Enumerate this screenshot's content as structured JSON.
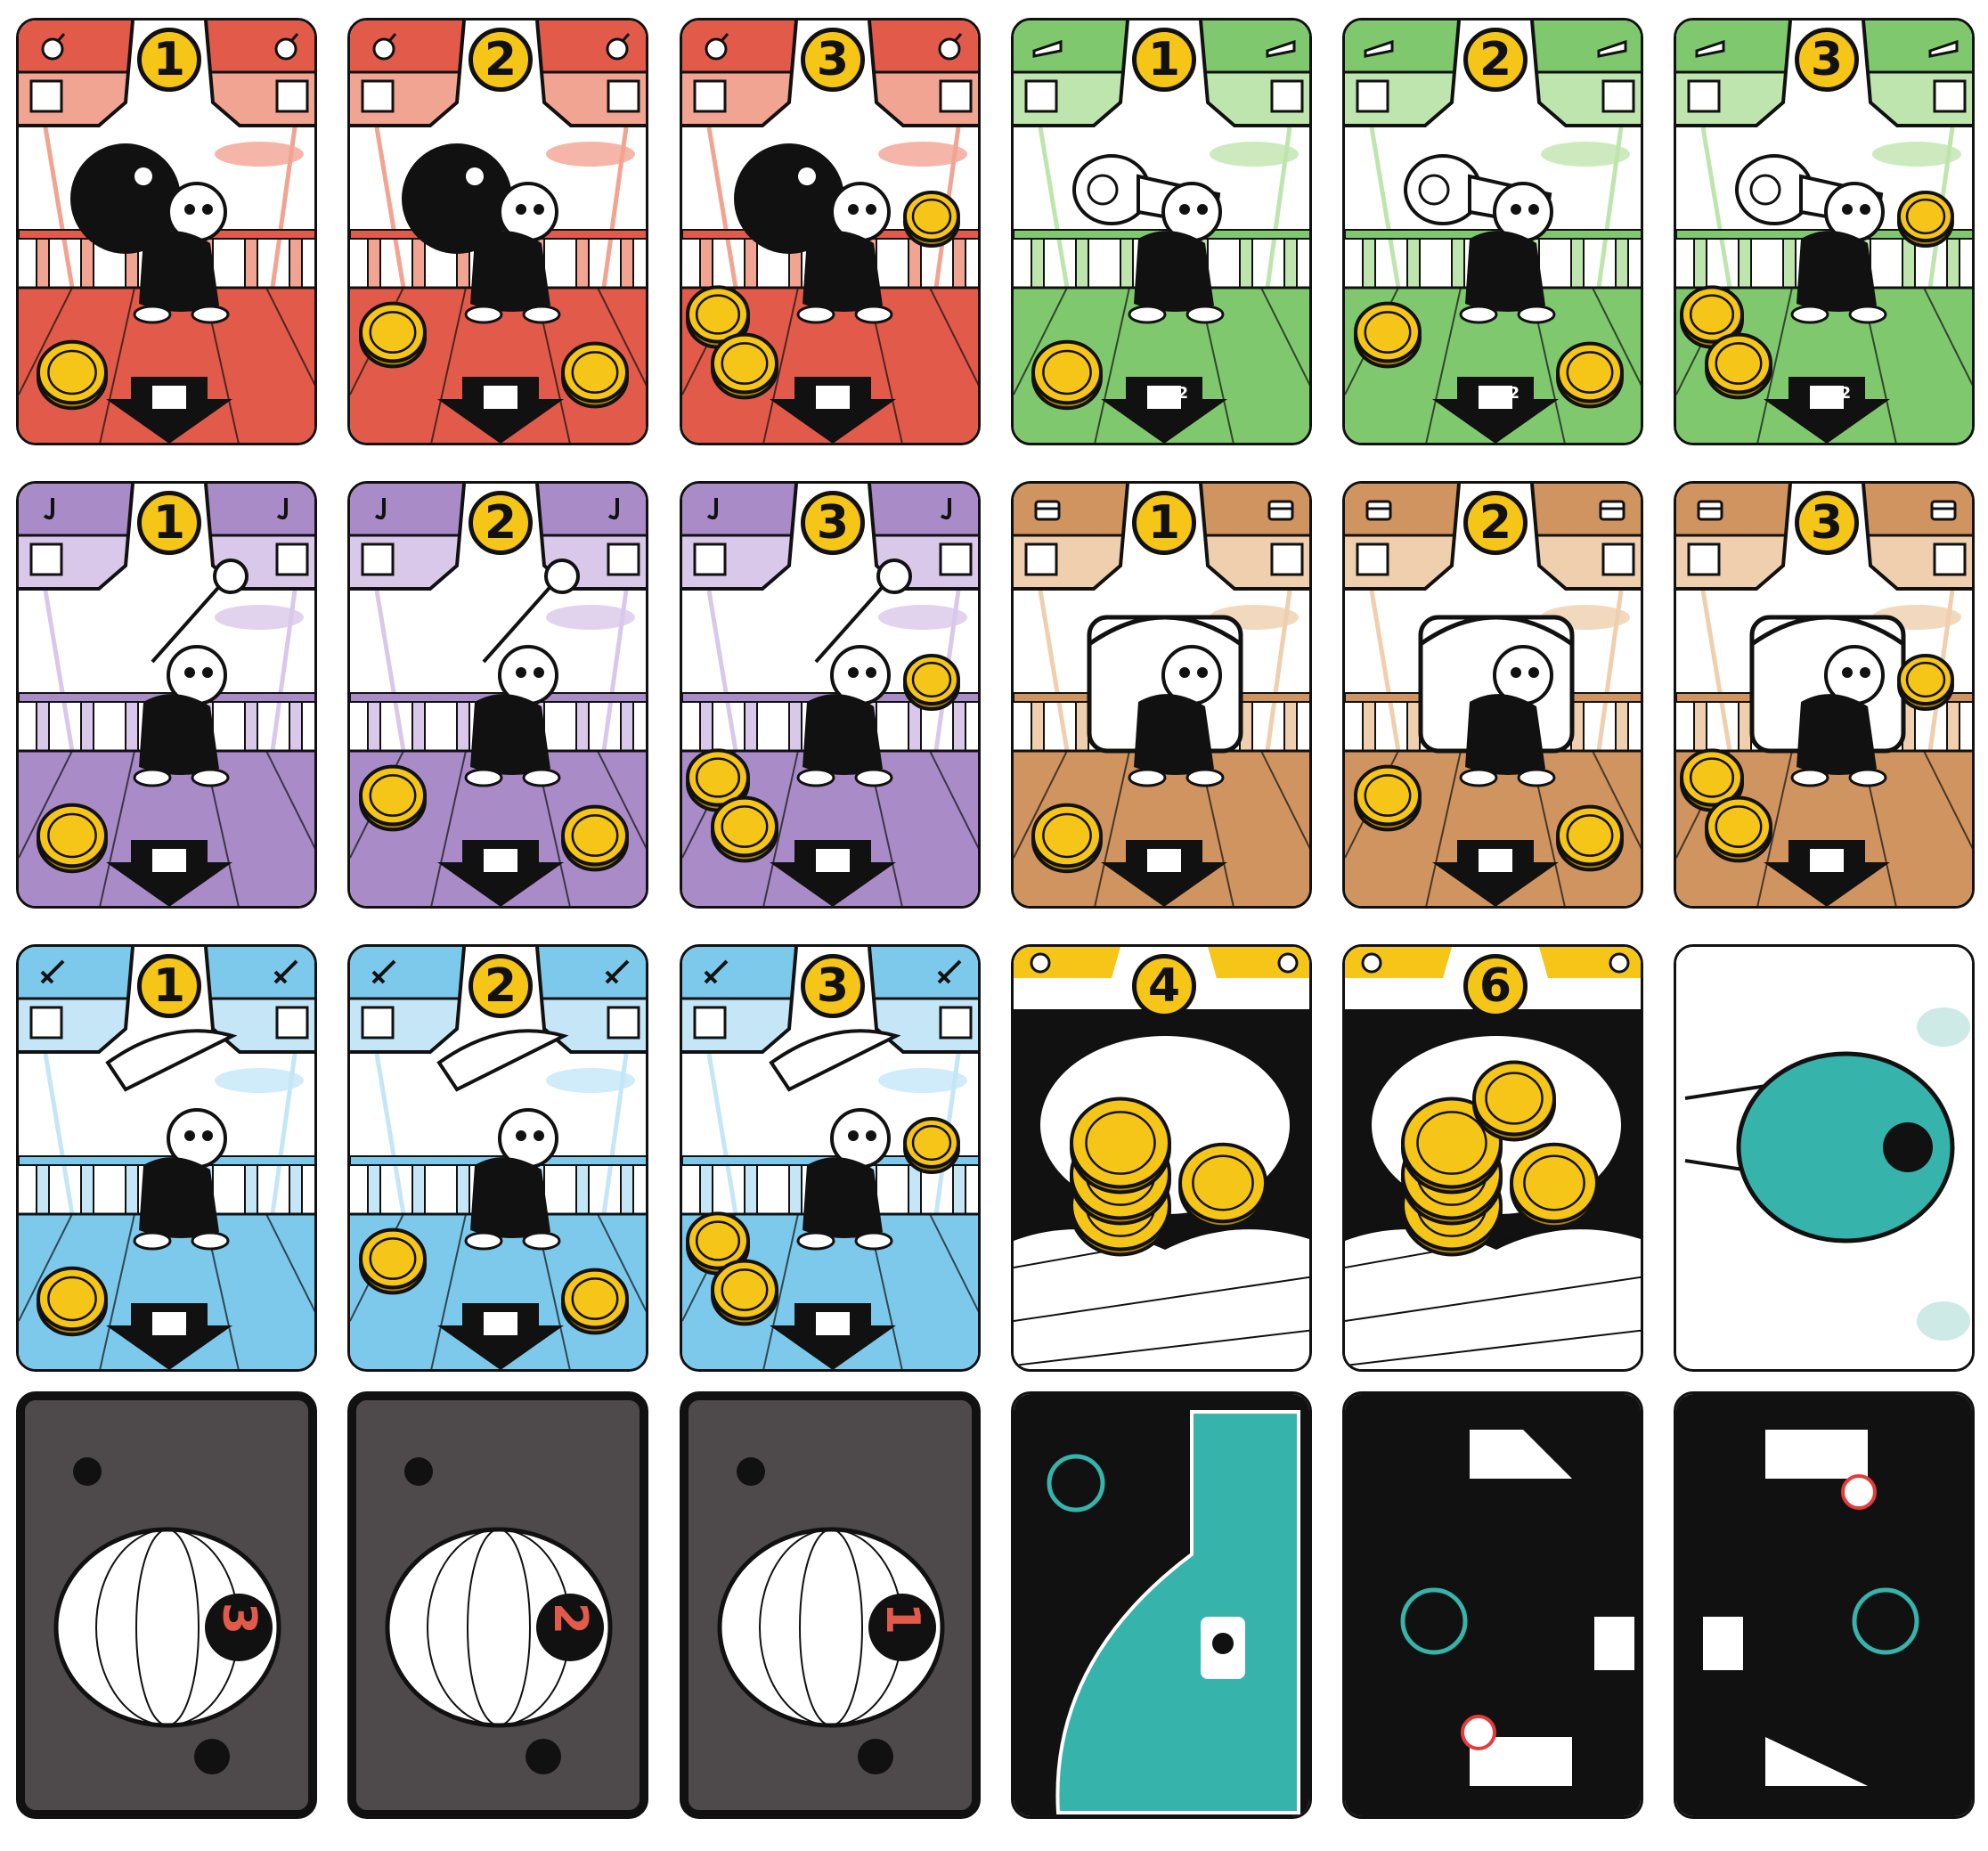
{
  "colors": {
    "red": "#e15a4a",
    "red_light": "#f2a493",
    "green": "#7fc86e",
    "green_light": "#bfe5ae",
    "purple": "#a98bc7",
    "purple_light": "#d9c8ea",
    "brown": "#cf9460",
    "brown_light": "#efcfae",
    "blue": "#7cc9ec",
    "blue_light": "#c4e6f7",
    "gold": "#f5c518",
    "teal": "#36b3aa",
    "dark_gray": "#4e4a4b",
    "black": "#111111"
  },
  "rows": [
    {
      "name": "bomb",
      "icon": "bomb-icon",
      "cards": [
        {
          "number": "1"
        },
        {
          "number": "2"
        },
        {
          "number": "3"
        }
      ]
    },
    {
      "name": "spyglass",
      "icon": "spyglass-icon",
      "cards": [
        {
          "number": "1",
          "action": "x2"
        },
        {
          "number": "2",
          "action": "x2"
        },
        {
          "number": "3",
          "action": "x2"
        }
      ]
    },
    {
      "name": "hook",
      "icon": "hook-icon",
      "cards": [
        {
          "number": "1"
        },
        {
          "number": "2"
        },
        {
          "number": "3"
        }
      ]
    },
    {
      "name": "chest",
      "icon": "chest-icon",
      "cards": [
        {
          "number": "1"
        },
        {
          "number": "2"
        },
        {
          "number": "3"
        }
      ]
    },
    {
      "name": "sword",
      "icon": "sword-icon",
      "cards": [
        {
          "number": "1"
        },
        {
          "number": "2"
        },
        {
          "number": "3"
        }
      ]
    }
  ],
  "treasure_cards": [
    {
      "number": "4"
    },
    {
      "number": "6"
    }
  ],
  "blimp_cards": [
    {
      "number": "3"
    },
    {
      "number": "2"
    },
    {
      "number": "1"
    }
  ]
}
